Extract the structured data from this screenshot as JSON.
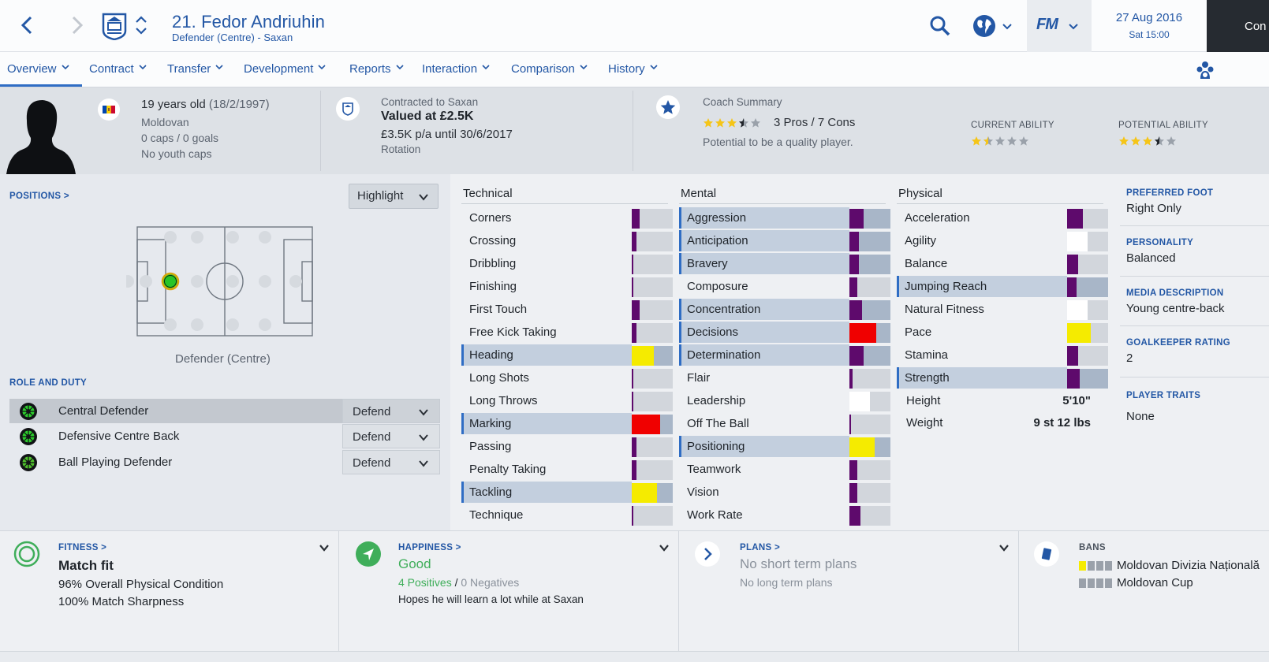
{
  "header": {
    "player_title": "21. Fedor Andriuhin",
    "player_subtitle": "Defender (Centre) - Saxan",
    "fm_label": "FM",
    "date": "27 Aug 2016",
    "time": "Sat 15:00",
    "continue_label": "Con"
  },
  "tabs": [
    {
      "label": "Overview"
    },
    {
      "label": "Contract"
    },
    {
      "label": "Transfer"
    },
    {
      "label": "Development"
    },
    {
      "label": "Reports"
    },
    {
      "label": "Interaction"
    },
    {
      "label": "Comparison"
    },
    {
      "label": "History"
    }
  ],
  "profile": {
    "age": "19 years old",
    "dob": "(18/2/1997)",
    "nationality": "Moldovan",
    "caps": "0 caps / 0 goals",
    "youth_caps": "No youth caps",
    "flag_colors": [
      "#0046ae",
      "#ffd200",
      "#cc092f"
    ]
  },
  "contract": {
    "contracted_to": "Contracted to Saxan",
    "value": "Valued at £2.5K",
    "wage": "£3.5K p/a until 30/6/2017",
    "squad_status": "Rotation"
  },
  "coach": {
    "title": "Coach Summary",
    "stars": 3.5,
    "pros_cons": "3 Pros / 7 Cons",
    "summary": "Potential to be a quality player.",
    "current_ability_label": "CURRENT ABILITY",
    "current_ability_stars": 1.5,
    "potential_ability_label": "POTENTIAL ABILITY",
    "potential_ability_stars": 3.5
  },
  "positions": {
    "link": "POSITIONS >",
    "highlight_label": "Highlight",
    "caption": "Defender (Centre)"
  },
  "roles": {
    "link": "ROLE AND DUTY",
    "items": [
      {
        "name": "Central Defender",
        "duty": "Defend"
      },
      {
        "name": "Defensive Centre Back",
        "duty": "Defend"
      },
      {
        "name": "Ball Playing Defender",
        "duty": "Defend"
      }
    ]
  },
  "attributes": {
    "technical_title": "Technical",
    "mental_title": "Mental",
    "physical_title": "Physical",
    "technical": [
      {
        "name": "Corners",
        "level": 0.19,
        "color": "#5e0a6c",
        "key": false
      },
      {
        "name": "Crossing",
        "level": 0.12,
        "color": "#5e0a6c",
        "key": false
      },
      {
        "name": "Dribbling",
        "level": 0.04,
        "color": "#5e0a6c",
        "key": false
      },
      {
        "name": "Finishing",
        "level": 0.04,
        "color": "#5e0a6c",
        "key": false
      },
      {
        "name": "First Touch",
        "level": 0.19,
        "color": "#5e0a6c",
        "key": false
      },
      {
        "name": "Free Kick Taking",
        "level": 0.12,
        "color": "#5e0a6c",
        "key": false
      },
      {
        "name": "Heading",
        "level": 0.54,
        "color": "#f5eb00",
        "key": true
      },
      {
        "name": "Long Shots",
        "level": 0.04,
        "color": "#5e0a6c",
        "key": false
      },
      {
        "name": "Long Throws",
        "level": 0.04,
        "color": "#5e0a6c",
        "key": false
      },
      {
        "name": "Marking",
        "level": 0.69,
        "color": "#f00000",
        "key": true
      },
      {
        "name": "Passing",
        "level": 0.12,
        "color": "#5e0a6c",
        "key": false
      },
      {
        "name": "Penalty Taking",
        "level": 0.12,
        "color": "#5e0a6c",
        "key": false
      },
      {
        "name": "Tackling",
        "level": 0.62,
        "color": "#f5eb00",
        "key": true
      },
      {
        "name": "Technique",
        "level": 0.04,
        "color": "#5e0a6c",
        "key": false
      }
    ],
    "mental": [
      {
        "name": "Aggression",
        "level": 0.35,
        "color": "#5e0a6c",
        "key": true
      },
      {
        "name": "Anticipation",
        "level": 0.23,
        "color": "#5e0a6c",
        "key": true
      },
      {
        "name": "Bravery",
        "level": 0.23,
        "color": "#5e0a6c",
        "key": true
      },
      {
        "name": "Composure",
        "level": 0.19,
        "color": "#5e0a6c",
        "key": false
      },
      {
        "name": "Concentration",
        "level": 0.31,
        "color": "#5e0a6c",
        "key": true
      },
      {
        "name": "Decisions",
        "level": 0.65,
        "color": "#f00000",
        "key": true
      },
      {
        "name": "Determination",
        "level": 0.35,
        "color": "#5e0a6c",
        "key": true
      },
      {
        "name": "Flair",
        "level": 0.08,
        "color": "#5e0a6c",
        "key": false
      },
      {
        "name": "Leadership",
        "level": 0.5,
        "color": "#ffffff",
        "key": false
      },
      {
        "name": "Off The Ball",
        "level": 0.04,
        "color": "#5e0a6c",
        "key": false
      },
      {
        "name": "Positioning",
        "level": 0.62,
        "color": "#f5eb00",
        "key": true
      },
      {
        "name": "Teamwork",
        "level": 0.19,
        "color": "#5e0a6c",
        "key": false
      },
      {
        "name": "Vision",
        "level": 0.19,
        "color": "#5e0a6c",
        "key": false
      },
      {
        "name": "Work Rate",
        "level": 0.27,
        "color": "#5e0a6c",
        "key": false
      }
    ],
    "physical": [
      {
        "name": "Acceleration",
        "level": 0.38,
        "color": "#5e0a6c",
        "key": false
      },
      {
        "name": "Agility",
        "level": 0.5,
        "color": "#ffffff",
        "key": false
      },
      {
        "name": "Balance",
        "level": 0.27,
        "color": "#5e0a6c",
        "key": false
      },
      {
        "name": "Jumping Reach",
        "level": 0.23,
        "color": "#5e0a6c",
        "key": true
      },
      {
        "name": "Natural Fitness",
        "level": 0.5,
        "color": "#ffffff",
        "key": false
      },
      {
        "name": "Pace",
        "level": 0.58,
        "color": "#f5eb00",
        "key": false
      },
      {
        "name": "Stamina",
        "level": 0.27,
        "color": "#5e0a6c",
        "key": false
      },
      {
        "name": "Strength",
        "level": 0.31,
        "color": "#5e0a6c",
        "key": true
      }
    ],
    "height_label": "Height",
    "height_value": "5'10\"",
    "weight_label": "Weight",
    "weight_value": "9 st 12 lbs"
  },
  "details": {
    "foot_label": "PREFERRED FOOT",
    "foot_value": "Right Only",
    "personality_label": "PERSONALITY",
    "personality_value": "Balanced",
    "media_label": "MEDIA DESCRIPTION",
    "media_value": "Young centre-back",
    "gk_label": "GOALKEEPER RATING",
    "gk_value": "2",
    "traits_label": "PLAYER TRAITS",
    "traits_value": "None"
  },
  "fitness": {
    "label": "FITNESS >",
    "status": "Match fit",
    "condition": "96% Overall Physical Condition",
    "sharpness": "100% Match Sharpness"
  },
  "happiness": {
    "label": "HAPPINESS >",
    "status": "Good",
    "positives": "4 Positives",
    "separator": "/",
    "negatives": "0 Negatives",
    "note": "Hopes he will learn a lot while at Saxan"
  },
  "plans": {
    "label": "PLANS >",
    "short": "No short term plans",
    "long": "No long term plans"
  },
  "bans": {
    "label": "BANS",
    "items": [
      "Moldovan Divizia Națională",
      "Moldovan Cup"
    ]
  },
  "colors": {
    "accent": "#2357a5",
    "purple": "#5e0a6c",
    "yellow": "#f5eb00",
    "red": "#f00000",
    "good_green": "#3fae5a"
  }
}
